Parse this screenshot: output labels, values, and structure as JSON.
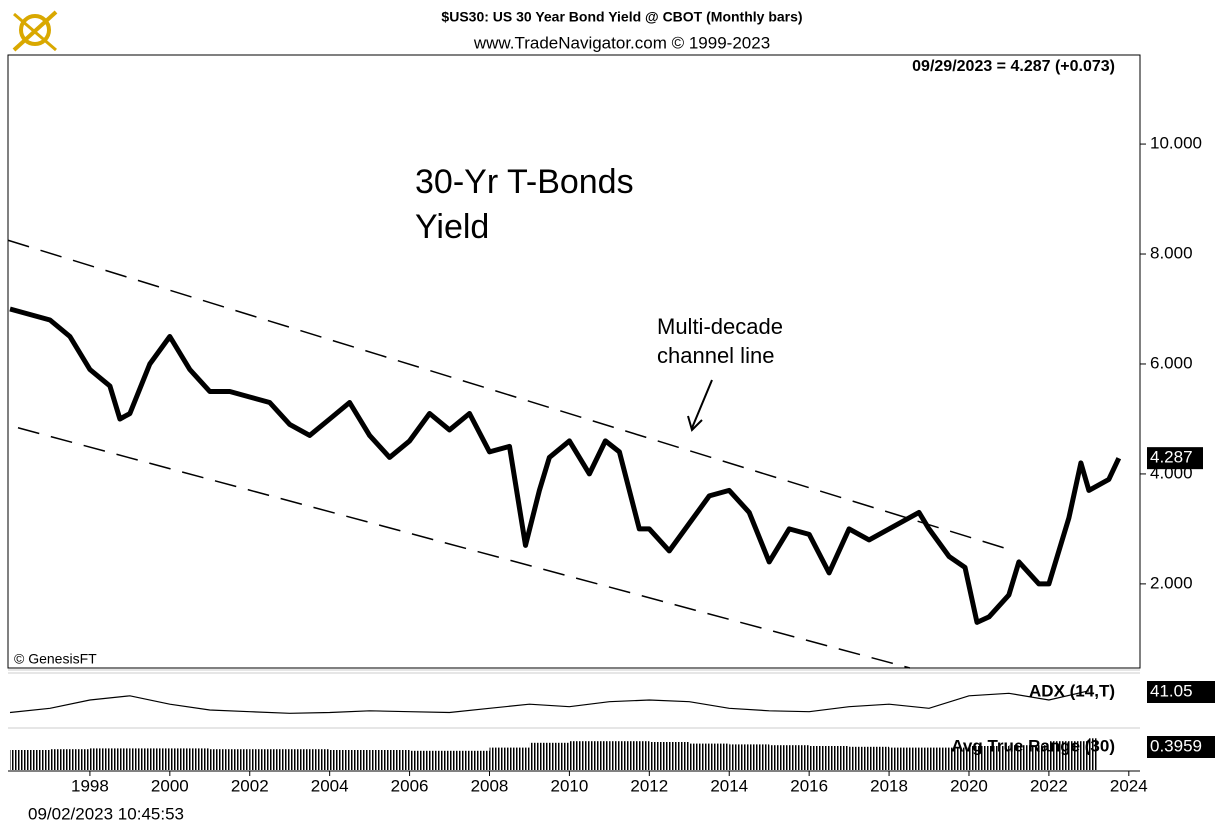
{
  "chart_data": {
    "type": "line",
    "title": "$US30:  US 30 Year Bond Yield @ CBOT  (Monthly bars)",
    "subtitle": "www.TradeNavigator.com © 1999-2023",
    "last_quote": "09/29/2023 = 4.287 (+0.073)",
    "annotations": [
      "30-Yr T-Bonds",
      "Yield",
      "Multi-decade",
      "channel line"
    ],
    "copyright": "© GenesisFT",
    "timestamp": "09/02/2023 10:45:53",
    "color": "#000000",
    "xlim": [
      1995.95,
      2024.28
    ],
    "xticks": [
      1998,
      2000,
      2002,
      2004,
      2006,
      2008,
      2010,
      2012,
      2014,
      2016,
      2018,
      2020,
      2022,
      2024
    ],
    "ylim": [
      0.47,
      11.62
    ],
    "yticks": [
      {
        "value": 2,
        "label": "2.000"
      },
      {
        "value": 4,
        "label": "4.000"
      },
      {
        "value": 6,
        "label": "6.000"
      },
      {
        "value": 8,
        "label": "8.000"
      },
      {
        "value": 10,
        "label": "10.000"
      }
    ],
    "x": [
      1996.0,
      1996.5,
      1997.0,
      1997.5,
      1998.0,
      1998.5,
      1998.75,
      1999.0,
      1999.5,
      2000.0,
      2000.5,
      2001.0,
      2001.5,
      2002.0,
      2002.5,
      2003.0,
      2003.5,
      2004.0,
      2004.5,
      2005.0,
      2005.5,
      2006.0,
      2006.5,
      2007.0,
      2007.5,
      2008.0,
      2008.5,
      2008.9,
      2009.25,
      2009.5,
      2010.0,
      2010.5,
      2010.9,
      2011.25,
      2011.75,
      2012.0,
      2012.5,
      2013.0,
      2013.5,
      2014.0,
      2014.5,
      2015.0,
      2015.5,
      2016.0,
      2016.5,
      2017.0,
      2017.5,
      2018.0,
      2018.75,
      2019.0,
      2019.5,
      2019.9,
      2020.2,
      2020.5,
      2021.0,
      2021.25,
      2021.75,
      2022.0,
      2022.5,
      2022.8,
      2023.0,
      2023.5,
      2023.75
    ],
    "series": [
      {
        "name": "$US30",
        "color": "#000000",
        "values": [
          7.0,
          6.9,
          6.8,
          6.5,
          5.9,
          5.6,
          5.0,
          5.1,
          6.0,
          6.5,
          5.9,
          5.5,
          5.5,
          5.4,
          5.3,
          4.9,
          4.7,
          5.0,
          5.3,
          4.7,
          4.3,
          4.6,
          5.1,
          4.8,
          5.1,
          4.4,
          4.5,
          2.7,
          3.7,
          4.3,
          4.6,
          4.0,
          4.6,
          4.4,
          3.0,
          3.0,
          2.6,
          3.1,
          3.6,
          3.7,
          3.3,
          2.4,
          3.0,
          2.9,
          2.2,
          3.0,
          2.8,
          3.0,
          3.3,
          3.0,
          2.5,
          2.3,
          1.3,
          1.4,
          1.8,
          2.4,
          2.0,
          2.0,
          3.2,
          4.2,
          3.7,
          3.9,
          4.287
        ]
      }
    ],
    "channel_lines": [
      {
        "x": [
          1995.95,
          2020.9
        ],
        "y": [
          8.25,
          2.65
        ]
      },
      {
        "x": [
          1996.2,
          2018.52
        ],
        "y": [
          4.84,
          0.47
        ]
      }
    ],
    "indicators": [
      {
        "name": "ADX (14,T)",
        "ylim": [
          0,
          60
        ],
        "x": [
          1996,
          1997,
          1998,
          1999,
          2000,
          2001,
          2002,
          2003,
          2004,
          2005,
          2006,
          2007,
          2008,
          2009,
          2010,
          2011,
          2012,
          2013,
          2014,
          2015,
          2016,
          2017,
          2018,
          2019,
          2020,
          2021,
          2022,
          2023
        ],
        "values": [
          15,
          20,
          30,
          35,
          25,
          18,
          16,
          14,
          15,
          17,
          16,
          15,
          20,
          25,
          22,
          28,
          30,
          28,
          20,
          17,
          16,
          22,
          25,
          20,
          35,
          38,
          30,
          41.05
        ]
      },
      {
        "name": "Avg True Range (30)",
        "ylim": [
          0,
          0.5
        ],
        "x": [
          1996,
          1997,
          1998,
          1999,
          2000,
          2001,
          2002,
          2003,
          2004,
          2005,
          2006,
          2007,
          2008,
          2009,
          2010,
          2011,
          2012,
          2013,
          2014,
          2015,
          2016,
          2017,
          2018,
          2019,
          2020,
          2021,
          2022,
          2023
        ],
        "values": [
          0.25,
          0.26,
          0.27,
          0.27,
          0.27,
          0.26,
          0.26,
          0.26,
          0.25,
          0.25,
          0.24,
          0.24,
          0.28,
          0.34,
          0.36,
          0.36,
          0.35,
          0.33,
          0.32,
          0.31,
          0.3,
          0.29,
          0.28,
          0.28,
          0.3,
          0.31,
          0.36,
          0.3959
        ]
      }
    ]
  }
}
